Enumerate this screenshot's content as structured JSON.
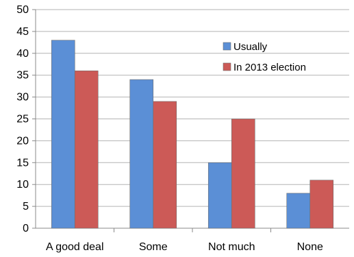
{
  "chart_data": {
    "type": "bar",
    "categories": [
      "A good deal",
      "Some",
      "Not much",
      "None"
    ],
    "series": [
      {
        "name": "Usually",
        "values": [
          43,
          34,
          15,
          8
        ],
        "color": "#5b8fd6"
      },
      {
        "name": "In 2013 election",
        "values": [
          36,
          29,
          25,
          11
        ],
        "color": "#cc5a57"
      }
    ],
    "ylim": [
      0,
      50
    ],
    "yticks": [
      0,
      5,
      10,
      15,
      20,
      25,
      30,
      35,
      40,
      45,
      50
    ],
    "grid": true,
    "legend_position": "top-right",
    "title": "",
    "xlabel": "",
    "ylabel": ""
  }
}
